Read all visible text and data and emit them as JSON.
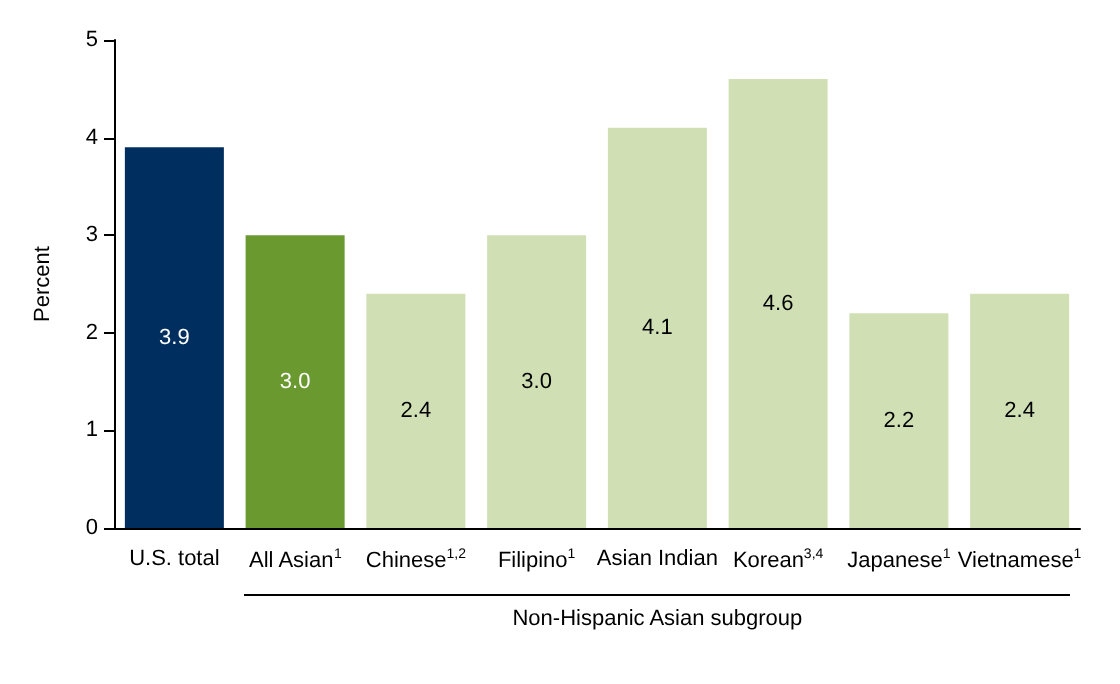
{
  "chart_data": {
    "type": "bar",
    "xlabel": "Non-Hispanic Asian subgroup",
    "ylabel": "Percent",
    "categories": [
      "U.S. total",
      "All Asian$^{1}$",
      "Chinese$^{1,2}$",
      "Filipino$^{1}$",
      "Asian Indian",
      "Korean$^{3,4}$",
      "Japanese$^{1}$",
      "Vietnamese$^{1}$"
    ],
    "values": [
      3.9,
      3.0,
      2.4,
      3.0,
      4.1,
      4.6,
      2.2,
      2.4
    ],
    "value_labels": [
      "3.9",
      "3.0",
      "2.4",
      "3.0",
      "4.1",
      "4.6",
      "2.2",
      "2.4"
    ],
    "colors": [
      "#002f5f",
      "#6a9a2f",
      "#d0e0b4",
      "#d0e0b4",
      "#d0e0b4",
      "#d0e0b4",
      "#d0e0b4",
      "#d0e0b4"
    ],
    "ylim": [
      0,
      5
    ],
    "yticks": [
      0,
      1,
      2,
      3,
      4,
      5
    ],
    "grid": false
  }
}
